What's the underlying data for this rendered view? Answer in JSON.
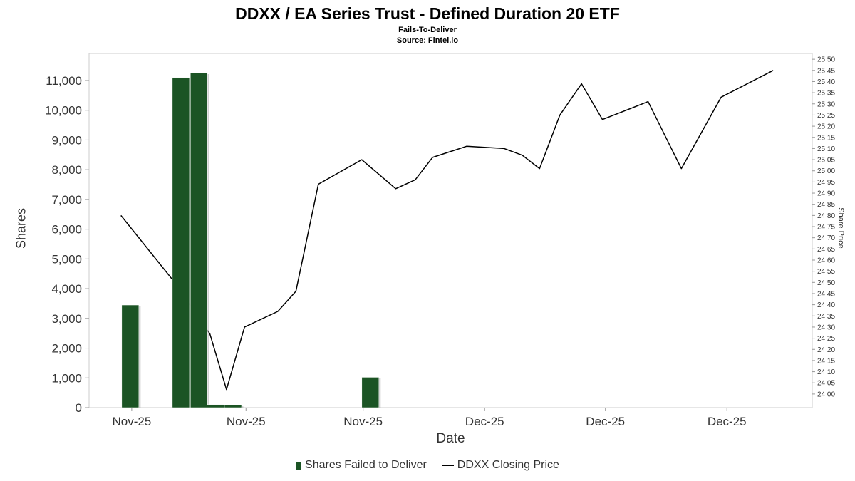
{
  "chart_data": {
    "type": "bar+line",
    "title": "DDXX / EA Series Trust - Defined Duration 20 ETF",
    "subtitle": "Fails-To-Deliver",
    "source": "Source: Fintel.io",
    "xlabel": "Date",
    "ylabel_left": "Shares",
    "ylabel_right": "Share Price",
    "legend_position": "bottom-center",
    "grid": false,
    "axes": {
      "left_ticks": [
        "0",
        "1,000",
        "2,000",
        "3,000",
        "4,000",
        "5,000",
        "6,000",
        "7,000",
        "8,000",
        "9,000",
        "10,000",
        "11,000"
      ],
      "left_plot_max": 11910,
      "right_ticks": [
        "24.00",
        "24.05",
        "24.10",
        "24.15",
        "24.20",
        "24.25",
        "24.30",
        "24.35",
        "24.40",
        "24.45",
        "24.50",
        "24.55",
        "24.60",
        "24.65",
        "24.70",
        "24.75",
        "24.80",
        "24.85",
        "24.90",
        "24.95",
        "25.00",
        "25.05",
        "25.10",
        "25.15",
        "25.20",
        "25.25",
        "25.30",
        "25.35",
        "25.40",
        "25.45",
        "25.50"
      ],
      "right_plot_min": 23.939,
      "right_plot_max": 25.526,
      "x_ticks": [
        {
          "x": 0.059,
          "label": "Nov-25"
        },
        {
          "x": 0.217,
          "label": "Nov-25"
        },
        {
          "x": 0.379,
          "label": "Nov-25"
        },
        {
          "x": 0.547,
          "label": "Dec-25"
        },
        {
          "x": 0.714,
          "label": "Dec-25"
        },
        {
          "x": 0.882,
          "label": "Dec-25"
        }
      ]
    },
    "bars": {
      "name": "Shares Failed to Deliver",
      "color": "#1b5424",
      "points": [
        {
          "x": 0.057,
          "value": 3450
        },
        {
          "x": 0.127,
          "value": 11100
        },
        {
          "x": 0.152,
          "value": 11250
        },
        {
          "x": 0.175,
          "value": 100
        },
        {
          "x": 0.199,
          "value": 80
        },
        {
          "x": 0.389,
          "value": 1020
        }
      ]
    },
    "line": {
      "name": "DDXX Closing Price",
      "color": "#000000",
      "points": [
        {
          "x": 0.044,
          "price": 24.8
        },
        {
          "x": 0.116,
          "price": 24.51
        },
        {
          "x": 0.167,
          "price": 24.27
        },
        {
          "x": 0.19,
          "price": 24.02
        },
        {
          "x": 0.215,
          "price": 24.3
        },
        {
          "x": 0.261,
          "price": 24.37
        },
        {
          "x": 0.286,
          "price": 24.46
        },
        {
          "x": 0.317,
          "price": 24.94
        },
        {
          "x": 0.377,
          "price": 25.05
        },
        {
          "x": 0.424,
          "price": 24.92
        },
        {
          "x": 0.451,
          "price": 24.96
        },
        {
          "x": 0.475,
          "price": 25.06
        },
        {
          "x": 0.522,
          "price": 25.11
        },
        {
          "x": 0.574,
          "price": 25.1
        },
        {
          "x": 0.599,
          "price": 25.07
        },
        {
          "x": 0.623,
          "price": 25.01
        },
        {
          "x": 0.651,
          "price": 25.25
        },
        {
          "x": 0.681,
          "price": 25.39
        },
        {
          "x": 0.71,
          "price": 25.23
        },
        {
          "x": 0.773,
          "price": 25.31
        },
        {
          "x": 0.819,
          "price": 25.01
        },
        {
          "x": 0.874,
          "price": 25.33
        },
        {
          "x": 0.946,
          "price": 25.45
        }
      ]
    }
  }
}
